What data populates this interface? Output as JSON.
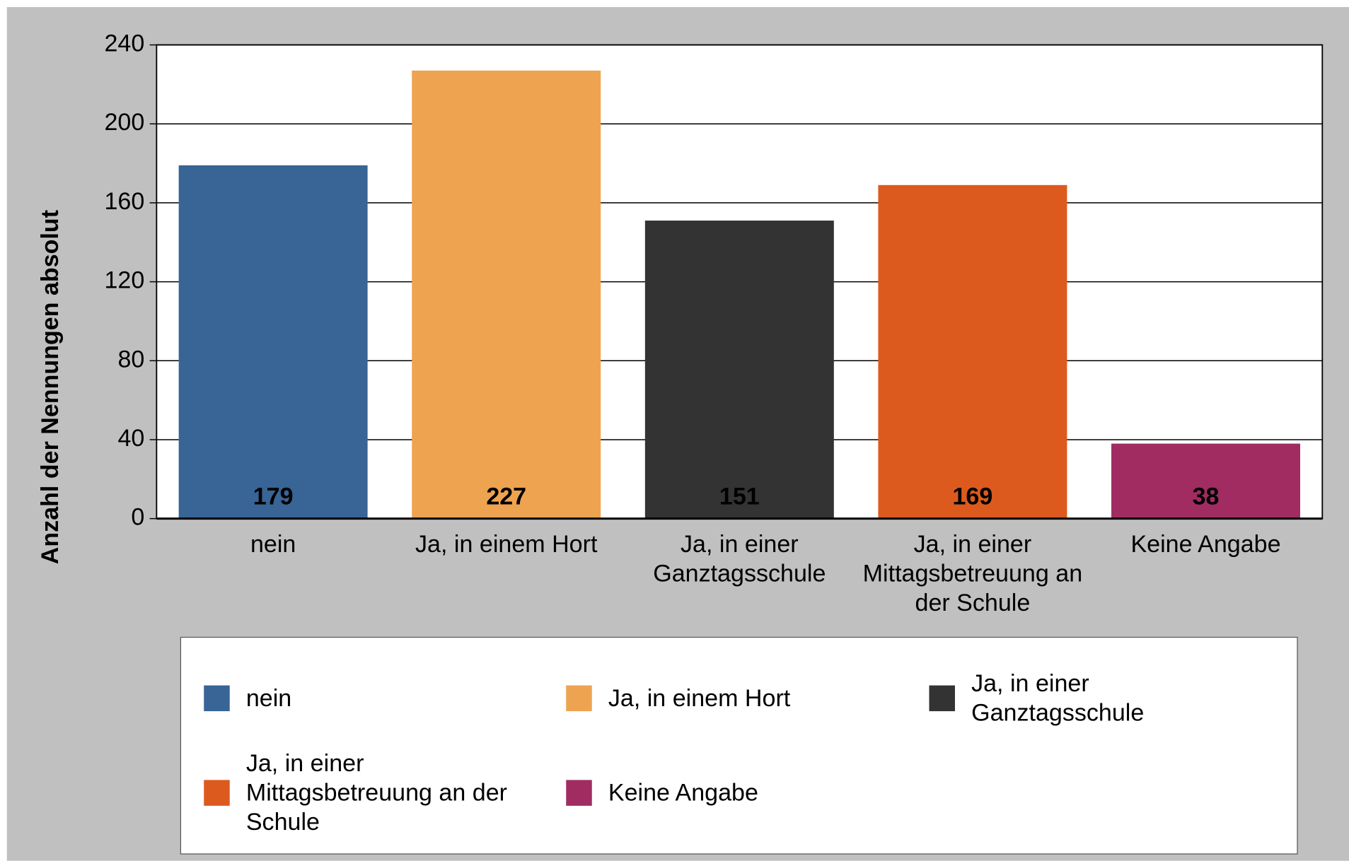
{
  "chart_data": {
    "type": "bar",
    "y_axis_label": "Anzahl der Nennungen absolut",
    "categories": [
      "nein",
      "Ja, in einem Hort",
      "Ja, in einer Ganztagsschule",
      "Ja, in einer Mittagsbetreuung an der Schule",
      "Keine Angabe"
    ],
    "values": [
      179,
      227,
      151,
      169,
      38
    ],
    "colors": [
      "#386496",
      "#eea350",
      "#333333",
      "#dc5a1e",
      "#a02c62"
    ],
    "ylim": [
      0,
      240
    ],
    "yticks": [
      0,
      40,
      80,
      120,
      160,
      200,
      240
    ],
    "grid": true,
    "legend": "bottom"
  }
}
